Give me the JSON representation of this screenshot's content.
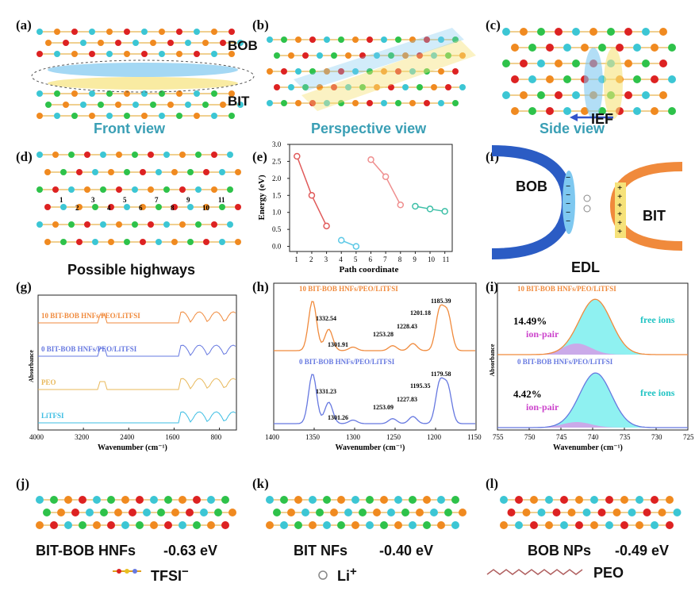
{
  "panels": {
    "a": {
      "letter": "(a)",
      "caption": "Front view",
      "labels": {
        "top": "BOB",
        "bottom": "BIT"
      }
    },
    "b": {
      "letter": "(b)",
      "caption": "Perspective view"
    },
    "c": {
      "letter": "(c)",
      "caption": "Side view",
      "ief": "IEF"
    },
    "d": {
      "letter": "(d)",
      "caption": "Possible highways",
      "sites": [
        "1",
        "2",
        "3",
        "4",
        "5",
        "6",
        "7",
        "8",
        "9",
        "10",
        "11"
      ]
    },
    "e": {
      "letter": "(e)"
    },
    "f": {
      "letter": "(f)",
      "left": "BOB",
      "right": "BIT",
      "edl": "EDL"
    },
    "g": {
      "letter": "(g)"
    },
    "h": {
      "letter": "(h)"
    },
    "i": {
      "letter": "(i)"
    },
    "j": {
      "letter": "(j)",
      "name": "BIT-BOB HNFs",
      "energy": "-0.63 eV"
    },
    "k": {
      "letter": "(k)",
      "name": "BIT NFs",
      "energy": "-0.40 eV"
    },
    "l": {
      "letter": "(l)",
      "name": "BOB NPs",
      "energy": "-0.49 eV"
    },
    "legend": {
      "tfsi": "TFSI",
      "tfsi_sup": "−",
      "li": "Li",
      "li_sup": "+",
      "peo": "PEO"
    }
  },
  "chart_data": [
    {
      "id": "e",
      "type": "scatter",
      "xlabel": "Path coordinate",
      "ylabel": "Energy (eV)",
      "xlim": [
        0.5,
        11.5
      ],
      "ylim": [
        -0.15,
        3.0
      ],
      "xticks": [
        "1",
        "2",
        "3",
        "4",
        "5",
        "6",
        "7",
        "8",
        "9",
        "10",
        "11"
      ],
      "yticks": [
        "0.0",
        "0.5",
        "1.0",
        "1.5",
        "2.0",
        "2.5",
        "3.0"
      ],
      "series": [
        {
          "color": "#e05a5a",
          "x": [
            1,
            2,
            3
          ],
          "y": [
            2.65,
            1.5,
            0.6
          ]
        },
        {
          "color": "#5bc8e6",
          "x": [
            4,
            5
          ],
          "y": [
            0.18,
            0.0
          ]
        },
        {
          "color": "#ef8f8f",
          "x": [
            6,
            7,
            8
          ],
          "y": [
            2.55,
            2.05,
            1.22
          ]
        },
        {
          "color": "#3dbfa7",
          "x": [
            9,
            10,
            11
          ],
          "y": [
            1.18,
            1.1,
            1.03
          ]
        }
      ]
    },
    {
      "id": "g",
      "type": "line",
      "xlabel": "Wavenumber (cm⁻¹)",
      "ylabel": "Absorbance",
      "xlim": [
        4000,
        500
      ],
      "xticks": [
        "4000",
        "3200",
        "2400",
        "1600",
        "800"
      ],
      "series": [
        {
          "name": "10 BIT-BOB HNFs/PEO/LiTFSI",
          "color": "#f08a3c"
        },
        {
          "name": "0 BIT-BOB HNFs/PEO/LiTFSI",
          "color": "#6678e0"
        },
        {
          "name": "PEO",
          "color": "#e8b85a"
        },
        {
          "name": "LiTFSI",
          "color": "#3bbde3"
        }
      ]
    },
    {
      "id": "h",
      "type": "line",
      "xlabel": "Wavenumber (cm⁻¹)",
      "xlim": [
        1400,
        1150
      ],
      "xticks": [
        "1400",
        "1350",
        "1300",
        "1250",
        "1200",
        "1150"
      ],
      "series": [
        {
          "name": "10 BIT-BOB HNFs/PEO/LiTFSI",
          "color": "#f08a3c",
          "peaks": [
            "1332.54",
            "1301.91",
            "1253.28",
            "1228.43",
            "1201.18",
            "1185.39"
          ]
        },
        {
          "name": "0 BIT-BOB HNFs/PEO/LiTFSI",
          "color": "#6678e0",
          "peaks": [
            "1331.23",
            "1301.26",
            "1253.09",
            "1227.83",
            "1195.35",
            "1179.58"
          ]
        }
      ]
    },
    {
      "id": "i",
      "type": "area",
      "xlabel": "Wavenumber (cm⁻¹)",
      "ylabel": "Absorbance",
      "xlim": [
        755,
        725
      ],
      "xticks": [
        "755",
        "750",
        "745",
        "740",
        "735",
        "730",
        "725"
      ],
      "series": [
        {
          "name": "10 BIT-BOB HNFs/PEO/LiTFSI",
          "color": "#f08a3c",
          "ion_pair_pct": "14.49%",
          "ion_pair": "ion-pair",
          "free": "free ions"
        },
        {
          "name": "0 BIT-BOB HNFs/PEO/LiTFSI",
          "color": "#6678e0",
          "ion_pair_pct": "4.42%",
          "ion_pair": "ion-pair",
          "free": "free ions"
        }
      ]
    }
  ]
}
